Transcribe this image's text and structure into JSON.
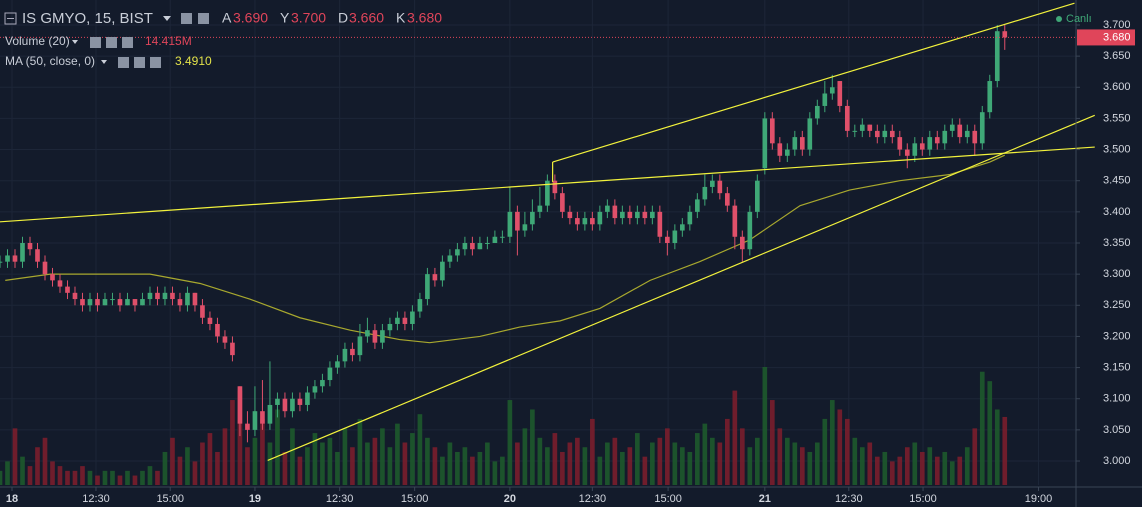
{
  "chart_data": {
    "type": "candlestick",
    "title": "IS GMYO, 15, BIST",
    "header": [
      {
        "key": "A",
        "label": "3.690"
      },
      {
        "key": "Y",
        "label": "3.700"
      },
      {
        "key": "D",
        "label": "3.660"
      },
      {
        "key": "K",
        "label": "3.680"
      }
    ],
    "volume_indicator": {
      "label": "Volume (20)",
      "value": 14.415,
      "value_label": "14.415M"
    },
    "ma_indicator": {
      "label": "MA (50, close, 0)",
      "value": 3.491,
      "value_label": "3.4910",
      "color": "#a8a82e",
      "x": [
        0.7,
        6.7,
        20,
        26.7,
        33.3,
        40,
        46.7,
        53.3,
        57.3,
        64,
        69.3,
        74.7,
        80,
        86.7,
        93.3,
        100,
        106.7,
        113.3,
        120,
        126.7,
        132,
        134
      ],
      "values": [
        3.29,
        3.3,
        3.3,
        3.285,
        3.26,
        3.23,
        3.21,
        3.195,
        3.19,
        3.2,
        3.215,
        3.225,
        3.245,
        3.29,
        3.32,
        3.355,
        3.41,
        3.435,
        3.45,
        3.46,
        3.48,
        3.491
      ]
    },
    "live_label": "Canlı",
    "up_color": "#3fa877",
    "down_color": "#e0506a",
    "up_volume_color": "#1e5a2c",
    "down_volume_color": "#7a1e2c",
    "ohlc": [
      [
        3.32,
        3.33,
        3.31,
        3.32
      ],
      [
        3.32,
        3.34,
        3.31,
        3.33
      ],
      [
        3.33,
        3.34,
        3.31,
        3.32
      ],
      [
        3.32,
        3.36,
        3.31,
        3.35
      ],
      [
        3.35,
        3.36,
        3.33,
        3.34
      ],
      [
        3.34,
        3.35,
        3.31,
        3.32
      ],
      [
        3.32,
        3.33,
        3.29,
        3.3
      ],
      [
        3.3,
        3.31,
        3.28,
        3.29
      ],
      [
        3.29,
        3.3,
        3.27,
        3.28
      ],
      [
        3.28,
        3.29,
        3.26,
        3.27
      ],
      [
        3.27,
        3.28,
        3.25,
        3.26
      ],
      [
        3.26,
        3.27,
        3.24,
        3.25
      ],
      [
        3.25,
        3.27,
        3.24,
        3.26
      ],
      [
        3.26,
        3.27,
        3.24,
        3.25
      ],
      [
        3.25,
        3.27,
        3.25,
        3.26
      ],
      [
        3.26,
        3.27,
        3.25,
        3.26
      ],
      [
        3.26,
        3.27,
        3.24,
        3.25
      ],
      [
        3.25,
        3.27,
        3.25,
        3.26
      ],
      [
        3.26,
        3.26,
        3.24,
        3.25
      ],
      [
        3.25,
        3.27,
        3.25,
        3.26
      ],
      [
        3.26,
        3.28,
        3.25,
        3.27
      ],
      [
        3.27,
        3.28,
        3.25,
        3.26
      ],
      [
        3.26,
        3.28,
        3.25,
        3.27
      ],
      [
        3.27,
        3.28,
        3.25,
        3.26
      ],
      [
        3.26,
        3.27,
        3.24,
        3.25
      ],
      [
        3.25,
        3.28,
        3.24,
        3.27
      ],
      [
        3.27,
        3.27,
        3.24,
        3.25
      ],
      [
        3.25,
        3.26,
        3.22,
        3.23
      ],
      [
        3.23,
        3.24,
        3.21,
        3.22
      ],
      [
        3.22,
        3.23,
        3.19,
        3.2
      ],
      [
        3.2,
        3.21,
        3.18,
        3.19
      ],
      [
        3.19,
        3.2,
        3.16,
        3.17
      ],
      [
        3.12,
        3.12,
        3.04,
        3.06
      ],
      [
        3.06,
        3.08,
        3.03,
        3.05
      ],
      [
        3.05,
        3.12,
        3.04,
        3.08
      ],
      [
        3.08,
        3.13,
        3.05,
        3.06
      ],
      [
        3.06,
        3.16,
        3.05,
        3.09
      ],
      [
        3.09,
        3.11,
        3.07,
        3.1
      ],
      [
        3.1,
        3.11,
        3.07,
        3.08
      ],
      [
        3.08,
        3.11,
        3.07,
        3.1
      ],
      [
        3.1,
        3.11,
        3.08,
        3.09
      ],
      [
        3.09,
        3.12,
        3.08,
        3.11
      ],
      [
        3.11,
        3.13,
        3.1,
        3.12
      ],
      [
        3.12,
        3.14,
        3.11,
        3.13
      ],
      [
        3.13,
        3.16,
        3.12,
        3.15
      ],
      [
        3.15,
        3.17,
        3.14,
        3.16
      ],
      [
        3.16,
        3.19,
        3.15,
        3.18
      ],
      [
        3.18,
        3.19,
        3.16,
        3.17
      ],
      [
        3.17,
        3.22,
        3.16,
        3.2
      ],
      [
        3.2,
        3.23,
        3.19,
        3.21
      ],
      [
        3.21,
        3.22,
        3.18,
        3.19
      ],
      [
        3.19,
        3.22,
        3.18,
        3.21
      ],
      [
        3.21,
        3.23,
        3.2,
        3.22
      ],
      [
        3.22,
        3.24,
        3.21,
        3.23
      ],
      [
        3.23,
        3.24,
        3.21,
        3.22
      ],
      [
        3.22,
        3.25,
        3.21,
        3.24
      ],
      [
        3.24,
        3.27,
        3.23,
        3.26
      ],
      [
        3.26,
        3.31,
        3.25,
        3.3
      ],
      [
        3.3,
        3.31,
        3.28,
        3.29
      ],
      [
        3.29,
        3.33,
        3.28,
        3.32
      ],
      [
        3.32,
        3.34,
        3.31,
        3.33
      ],
      [
        3.33,
        3.35,
        3.32,
        3.34
      ],
      [
        3.34,
        3.36,
        3.33,
        3.35
      ],
      [
        3.35,
        3.36,
        3.33,
        3.34
      ],
      [
        3.34,
        3.36,
        3.34,
        3.35
      ],
      [
        3.35,
        3.36,
        3.34,
        3.35
      ],
      [
        3.35,
        3.37,
        3.35,
        3.36
      ],
      [
        3.36,
        3.37,
        3.35,
        3.36
      ],
      [
        3.36,
        3.44,
        3.35,
        3.4
      ],
      [
        3.4,
        3.41,
        3.33,
        3.37
      ],
      [
        3.37,
        3.4,
        3.36,
        3.38
      ],
      [
        3.38,
        3.42,
        3.37,
        3.4
      ],
      [
        3.4,
        3.44,
        3.39,
        3.41
      ],
      [
        3.41,
        3.46,
        3.4,
        3.45
      ],
      [
        3.45,
        3.46,
        3.42,
        3.43
      ],
      [
        3.43,
        3.44,
        3.39,
        3.4
      ],
      [
        3.4,
        3.41,
        3.38,
        3.39
      ],
      [
        3.39,
        3.4,
        3.37,
        3.38
      ],
      [
        3.38,
        3.4,
        3.37,
        3.39
      ],
      [
        3.39,
        3.4,
        3.37,
        3.38
      ],
      [
        3.38,
        3.41,
        3.37,
        3.4
      ],
      [
        3.4,
        3.42,
        3.39,
        3.41
      ],
      [
        3.41,
        3.42,
        3.38,
        3.39
      ],
      [
        3.39,
        3.41,
        3.38,
        3.4
      ],
      [
        3.4,
        3.41,
        3.38,
        3.39
      ],
      [
        3.39,
        3.41,
        3.38,
        3.4
      ],
      [
        3.4,
        3.41,
        3.38,
        3.39
      ],
      [
        3.39,
        3.41,
        3.38,
        3.4
      ],
      [
        3.4,
        3.41,
        3.35,
        3.36
      ],
      [
        3.36,
        3.37,
        3.33,
        3.35
      ],
      [
        3.35,
        3.38,
        3.34,
        3.37
      ],
      [
        3.37,
        3.39,
        3.36,
        3.38
      ],
      [
        3.38,
        3.41,
        3.37,
        3.4
      ],
      [
        3.4,
        3.43,
        3.39,
        3.42
      ],
      [
        3.42,
        3.46,
        3.41,
        3.44
      ],
      [
        3.44,
        3.46,
        3.43,
        3.45
      ],
      [
        3.45,
        3.46,
        3.42,
        3.43
      ],
      [
        3.43,
        3.44,
        3.4,
        3.41
      ],
      [
        3.41,
        3.42,
        3.34,
        3.36
      ],
      [
        3.36,
        3.37,
        3.32,
        3.34
      ],
      [
        3.34,
        3.41,
        3.33,
        3.4
      ],
      [
        3.4,
        3.46,
        3.39,
        3.45
      ],
      [
        3.47,
        3.56,
        3.46,
        3.55
      ],
      [
        3.55,
        3.56,
        3.5,
        3.51
      ],
      [
        3.51,
        3.52,
        3.48,
        3.49
      ],
      [
        3.49,
        3.51,
        3.48,
        3.5
      ],
      [
        3.5,
        3.53,
        3.49,
        3.52
      ],
      [
        3.52,
        3.53,
        3.49,
        3.5
      ],
      [
        3.5,
        3.56,
        3.49,
        3.55
      ],
      [
        3.55,
        3.58,
        3.54,
        3.57
      ],
      [
        3.57,
        3.61,
        3.56,
        3.59
      ],
      [
        3.59,
        3.62,
        3.58,
        3.6
      ],
      [
        3.61,
        3.61,
        3.56,
        3.57
      ],
      [
        3.57,
        3.58,
        3.52,
        3.53
      ],
      [
        3.53,
        3.54,
        3.52,
        3.53
      ],
      [
        3.53,
        3.55,
        3.52,
        3.54
      ],
      [
        3.54,
        3.54,
        3.52,
        3.53
      ],
      [
        3.53,
        3.54,
        3.51,
        3.52
      ],
      [
        3.52,
        3.54,
        3.51,
        3.53
      ],
      [
        3.53,
        3.54,
        3.51,
        3.52
      ],
      [
        3.52,
        3.53,
        3.49,
        3.5
      ],
      [
        3.5,
        3.51,
        3.47,
        3.49
      ],
      [
        3.49,
        3.52,
        3.48,
        3.51
      ],
      [
        3.51,
        3.52,
        3.49,
        3.5
      ],
      [
        3.5,
        3.53,
        3.49,
        3.52
      ],
      [
        3.52,
        3.53,
        3.5,
        3.51
      ],
      [
        3.51,
        3.54,
        3.5,
        3.53
      ],
      [
        3.53,
        3.55,
        3.52,
        3.54
      ],
      [
        3.54,
        3.55,
        3.51,
        3.52
      ],
      [
        3.52,
        3.54,
        3.51,
        3.53
      ],
      [
        3.53,
        3.54,
        3.49,
        3.51
      ],
      [
        3.51,
        3.57,
        3.5,
        3.56
      ],
      [
        3.56,
        3.62,
        3.55,
        3.61
      ],
      [
        3.61,
        3.7,
        3.6,
        3.69
      ],
      [
        3.69,
        3.7,
        3.66,
        3.68
      ]
    ],
    "volumes": [
      3,
      5,
      12,
      6,
      4,
      8,
      10,
      5,
      4,
      3,
      3,
      4,
      3,
      2,
      3,
      3,
      2,
      3,
      2,
      3,
      4,
      3,
      7,
      10,
      6,
      8,
      5,
      9,
      11,
      7,
      12,
      18,
      20,
      8,
      10,
      14,
      9,
      16,
      7,
      12,
      6,
      8,
      11,
      9,
      10,
      7,
      12,
      8,
      14,
      9,
      10,
      12,
      8,
      13,
      9,
      11,
      15,
      10,
      8,
      6,
      9,
      7,
      8,
      6,
      7,
      9,
      5,
      6,
      18,
      9,
      12,
      16,
      10,
      8,
      11,
      7,
      9,
      10,
      8,
      14,
      6,
      9,
      10,
      7,
      8,
      11,
      6,
      9,
      10,
      12,
      9,
      8,
      7,
      11,
      13,
      10,
      9,
      14,
      20,
      12,
      8,
      10,
      25,
      18,
      12,
      10,
      9,
      8,
      7,
      9,
      14,
      18,
      16,
      14,
      10,
      8,
      9,
      6,
      7,
      5,
      6,
      8,
      9,
      7,
      8,
      6,
      7,
      5,
      6,
      8,
      12,
      24,
      22,
      16,
      14.415
    ],
    "trend_lines": [
      {
        "x": [
          73.7,
          143.3
        ],
        "y": [
          3.48,
          3.735
        ]
      },
      {
        "x": [
          73.7,
          73.7
        ],
        "y": [
          3.448,
          3.48
        ]
      },
      {
        "x": [
          0,
          146
        ],
        "y": [
          3.384,
          3.504
        ]
      },
      {
        "x": [
          35.7,
          146
        ],
        "y": [
          3.001,
          3.555
        ]
      }
    ],
    "trend_color": "#f2f23c",
    "last_price": {
      "value": 3.68,
      "label": "3.680"
    },
    "xlim": [
      0,
      143.5
    ],
    "ylim": [
      2.9615,
      3.7401
    ],
    "xticks": [
      {
        "value": 1.6,
        "label": "18"
      },
      {
        "value": 12.8,
        "label": "12:30"
      },
      {
        "value": 22.7,
        "label": "15:00"
      },
      {
        "value": 34,
        "label": "19"
      },
      {
        "value": 45.3,
        "label": "12:30"
      },
      {
        "value": 55.3,
        "label": "15:00"
      },
      {
        "value": 68,
        "label": "20"
      },
      {
        "value": 79,
        "label": "12:30"
      },
      {
        "value": 89.1,
        "label": "15:00"
      },
      {
        "value": 102,
        "label": "21"
      },
      {
        "value": 113.2,
        "label": "12:30"
      },
      {
        "value": 123.1,
        "label": "15:00"
      },
      {
        "value": 138.5,
        "label": "19:00"
      }
    ],
    "yticks": [
      {
        "value": 3.0,
        "label": "3.000"
      },
      {
        "value": 3.05,
        "label": "3.050"
      },
      {
        "value": 3.1,
        "label": "3.100"
      },
      {
        "value": 3.15,
        "label": "3.150"
      },
      {
        "value": 3.2,
        "label": "3.200"
      },
      {
        "value": 3.25,
        "label": "3.250"
      },
      {
        "value": 3.3,
        "label": "3.300"
      },
      {
        "value": 3.35,
        "label": "3.350"
      },
      {
        "value": 3.4,
        "label": "3.400"
      },
      {
        "value": 3.45,
        "label": "3.450"
      },
      {
        "value": 3.5,
        "label": "3.500"
      },
      {
        "value": 3.55,
        "label": "3.550"
      },
      {
        "value": 3.6,
        "label": "3.600"
      },
      {
        "value": 3.65,
        "label": "3.650"
      },
      {
        "value": 3.7,
        "label": "3.700"
      }
    ],
    "grid": true
  }
}
